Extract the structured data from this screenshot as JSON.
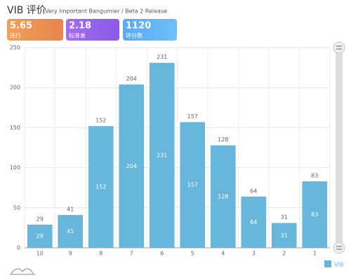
{
  "chart_data": {
    "type": "bar",
    "title": "VIB 评价",
    "subtitle": "Very Important Bangumier / Beta 2 Release",
    "categories": [
      "10",
      "9",
      "8",
      "7",
      "6",
      "5",
      "4",
      "3",
      "2",
      "1"
    ],
    "series": [
      {
        "name": "VIB",
        "color": "#67b7dc",
        "values": [
          29,
          41,
          152,
          204,
          231,
          157,
          128,
          64,
          31,
          83
        ]
      }
    ],
    "ylim": [
      0,
      250
    ],
    "yticks": [
      0,
      50,
      100,
      150,
      200,
      250
    ],
    "grid": true
  },
  "stats": [
    {
      "value": "5.65",
      "label": "还行"
    },
    {
      "value": "2.18",
      "label": "标准差"
    },
    {
      "value": "1120",
      "label": "评分数"
    }
  ]
}
